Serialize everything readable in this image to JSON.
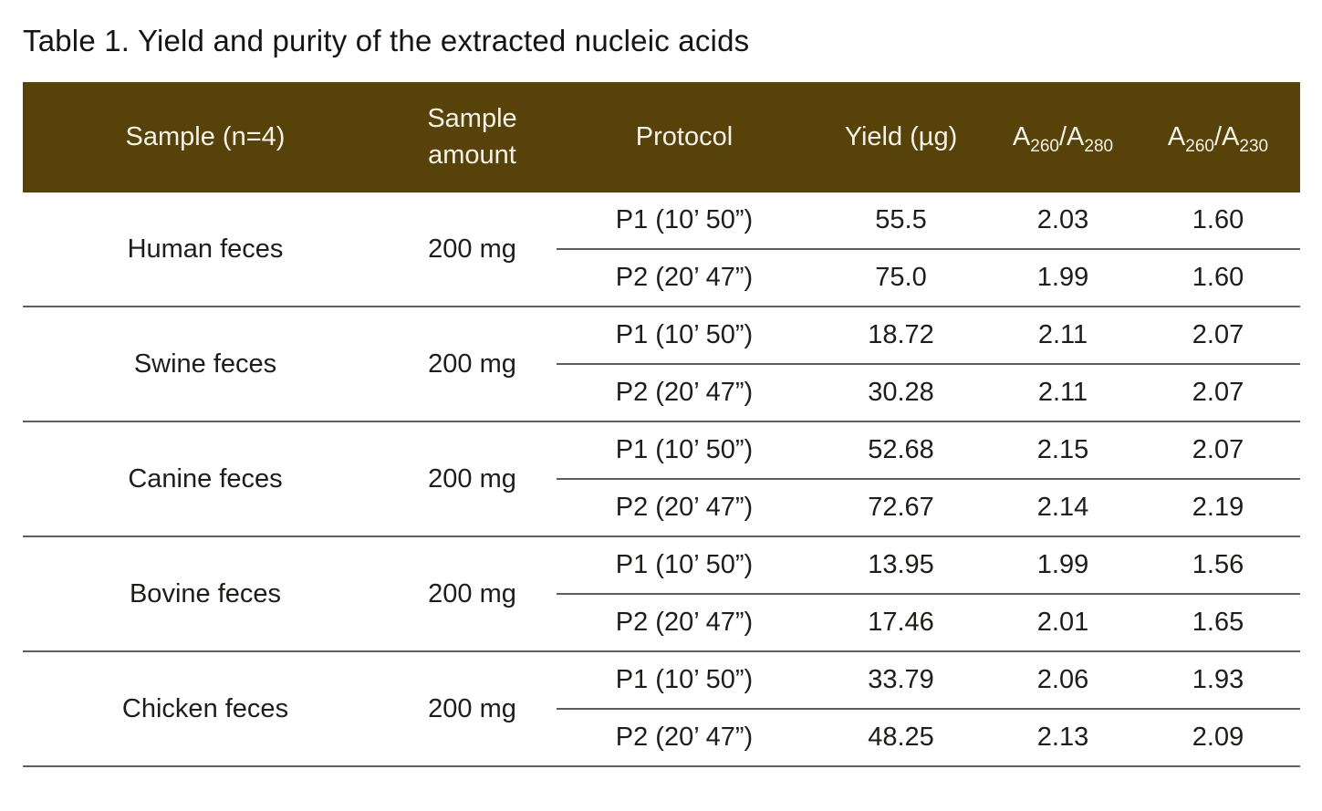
{
  "title": "Table 1. Yield and purity of the extracted nucleic acids",
  "colors": {
    "header_background": "#574309",
    "header_text": "#f5f1e8",
    "body_text": "#1d1d1b",
    "divider": "#5e5e5e"
  },
  "table": {
    "headers": {
      "sample": "Sample (n=4)",
      "amount": "Sample amount",
      "protocol": "Protocol",
      "yield": "Yield (µg)",
      "ratio280": {
        "base1": "A",
        "sub1": "260",
        "base2": "/A",
        "sub2": "280"
      },
      "ratio230": {
        "base1": "A",
        "sub1": "260",
        "base2": "/A",
        "sub2": "230"
      }
    },
    "groups": [
      {
        "sample": "Human feces",
        "amount": "200 mg",
        "rows": [
          {
            "protocol": "P1 (10’ 50”)",
            "yield": "55.5",
            "r280": "2.03",
            "r230": "1.60"
          },
          {
            "protocol": "P2 (20’ 47”)",
            "yield": "75.0",
            "r280": "1.99",
            "r230": "1.60"
          }
        ]
      },
      {
        "sample": "Swine feces",
        "amount": "200 mg",
        "rows": [
          {
            "protocol": "P1 (10’ 50”)",
            "yield": "18.72",
            "r280": "2.11",
            "r230": "2.07"
          },
          {
            "protocol": "P2 (20’ 47”)",
            "yield": "30.28",
            "r280": "2.11",
            "r230": "2.07"
          }
        ]
      },
      {
        "sample": "Canine feces",
        "amount": "200 mg",
        "rows": [
          {
            "protocol": "P1 (10’ 50”)",
            "yield": "52.68",
            "r280": "2.15",
            "r230": "2.07"
          },
          {
            "protocol": "P2 (20’ 47”)",
            "yield": "72.67",
            "r280": "2.14",
            "r230": "2.19"
          }
        ]
      },
      {
        "sample": "Bovine feces",
        "amount": "200 mg",
        "rows": [
          {
            "protocol": "P1 (10’ 50”)",
            "yield": "13.95",
            "r280": "1.99",
            "r230": "1.56"
          },
          {
            "protocol": "P2 (20’ 47”)",
            "yield": "17.46",
            "r280": "2.01",
            "r230": "1.65"
          }
        ]
      },
      {
        "sample": "Chicken feces",
        "amount": "200 mg",
        "rows": [
          {
            "protocol": "P1 (10’ 50”)",
            "yield": "33.79",
            "r280": "2.06",
            "r230": "1.93"
          },
          {
            "protocol": "P2 (20’ 47”)",
            "yield": "48.25",
            "r280": "2.13",
            "r230": "2.09"
          }
        ]
      }
    ]
  }
}
